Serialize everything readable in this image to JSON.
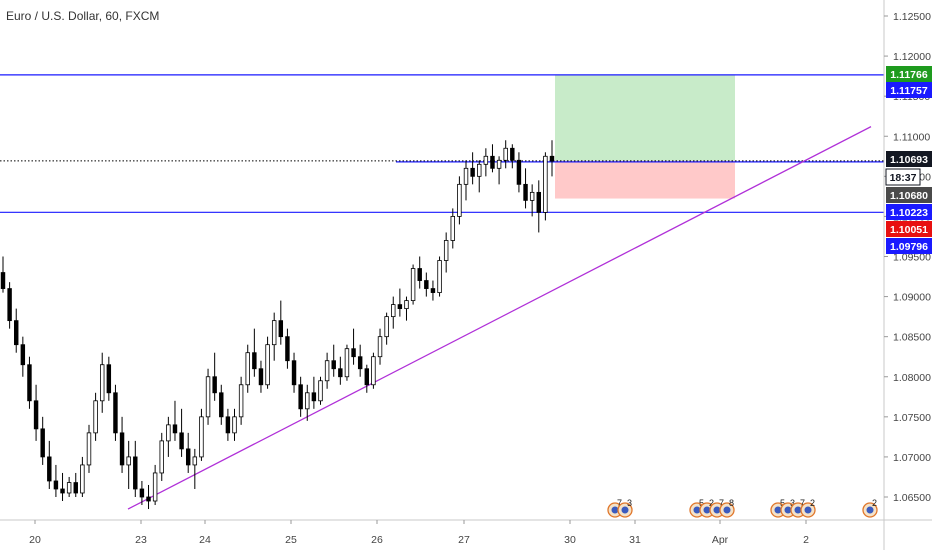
{
  "header": {
    "title": "Euro / U.S. Dollar, 60, FXCM"
  },
  "colors": {
    "up": "#ffffff",
    "down": "#000000",
    "wick": "#000000",
    "hline": "#1a1aff",
    "trend": "#b030d8",
    "target_zone": "#c8ebc9",
    "stop_zone": "#ffc9c9",
    "tag_green": "#1e9b1e",
    "tag_blue": "#1a1aff",
    "tag_red": "#e81010",
    "tag_dark": "#131722",
    "tag_gray": "#4a4a4a"
  },
  "chart_data": {
    "type": "candlestick",
    "title": "Euro / U.S. Dollar, 60, FXCM",
    "ylim": [
      1.0625,
      1.1275
    ],
    "y_ticks": [
      "1.12500",
      "1.12000",
      "1.11500",
      "1.11000",
      "1.10500",
      "1.10000",
      "1.09500",
      "1.09000",
      "1.08500",
      "1.08000",
      "1.07500",
      "1.07000",
      "1.06500"
    ],
    "x_ticks": [
      "20",
      "23",
      "24",
      "25",
      "26",
      "27",
      "30",
      "31",
      "Apr",
      "2"
    ],
    "price_line": 1.10693,
    "horizontal_lines": [
      1.11766,
      1.10051
    ],
    "short_line": {
      "value": 1.1068,
      "from": "26",
      "to": "2"
    },
    "trendline": {
      "from": [
        "23",
        1.0635
      ],
      "to": [
        "2",
        1.1112
      ]
    },
    "position": {
      "entry": 1.10693,
      "target": 1.11766,
      "stop": 1.10223
    },
    "price_tags": [
      {
        "text": "1.11766",
        "value": 1.11766,
        "style": "green"
      },
      {
        "text": "1.11757",
        "value": 1.11757,
        "style": "blue"
      },
      {
        "text": "1.10693",
        "value": 1.10693,
        "style": "dark"
      },
      {
        "text": "18:37",
        "value": 1.10693,
        "style": "timer"
      },
      {
        "text": "1.10680",
        "value": 1.1068,
        "style": "gray"
      },
      {
        "text": "1.10223",
        "value": 1.10223,
        "style": "blue"
      },
      {
        "text": "1.10051",
        "value": 1.10051,
        "style": "red"
      },
      {
        "text": "1.09796",
        "value": 1.09796,
        "style": "blue"
      }
    ],
    "event_markers": [
      {
        "labels": [
          "7",
          "3"
        ]
      },
      {
        "labels": [
          "5",
          "2",
          "7",
          "8"
        ]
      },
      {
        "labels": [
          "5",
          "3",
          "7",
          "2"
        ]
      },
      {
        "labels": [
          "2"
        ]
      }
    ],
    "candles": [
      [
        1.093,
        1.095,
        1.0905,
        1.091
      ],
      [
        1.091,
        1.0918,
        1.086,
        1.087
      ],
      [
        1.087,
        1.0885,
        1.083,
        1.084
      ],
      [
        1.084,
        1.085,
        1.08,
        1.0815
      ],
      [
        1.0815,
        1.0825,
        1.076,
        1.077
      ],
      [
        1.077,
        1.079,
        1.072,
        1.0735
      ],
      [
        1.0735,
        1.075,
        1.069,
        1.07
      ],
      [
        1.07,
        1.072,
        1.066,
        1.067
      ],
      [
        1.067,
        1.069,
        1.065,
        1.066
      ],
      [
        1.066,
        1.068,
        1.0645,
        1.0655
      ],
      [
        1.0655,
        1.0675,
        1.065,
        1.0668
      ],
      [
        1.0668,
        1.068,
        1.065,
        1.0655
      ],
      [
        1.0655,
        1.07,
        1.065,
        1.069
      ],
      [
        1.069,
        1.074,
        1.068,
        1.073
      ],
      [
        1.073,
        1.078,
        1.072,
        1.077
      ],
      [
        1.077,
        1.083,
        1.0755,
        1.0815
      ],
      [
        1.0815,
        1.0825,
        1.077,
        1.078
      ],
      [
        1.078,
        1.079,
        1.072,
        1.073
      ],
      [
        1.073,
        1.075,
        1.068,
        1.069
      ],
      [
        1.069,
        1.072,
        1.066,
        1.07
      ],
      [
        1.07,
        1.072,
        1.065,
        1.066
      ],
      [
        1.066,
        1.067,
        1.064,
        1.065
      ],
      [
        1.065,
        1.0665,
        1.0635,
        1.0645
      ],
      [
        1.0645,
        1.069,
        1.064,
        1.068
      ],
      [
        1.068,
        1.073,
        1.067,
        1.072
      ],
      [
        1.072,
        1.075,
        1.07,
        1.074
      ],
      [
        1.074,
        1.077,
        1.072,
        1.073
      ],
      [
        1.073,
        1.076,
        1.07,
        1.071
      ],
      [
        1.071,
        1.073,
        1.068,
        1.069
      ],
      [
        1.069,
        1.071,
        1.066,
        1.07
      ],
      [
        1.07,
        1.076,
        1.0695,
        1.075
      ],
      [
        1.075,
        1.081,
        1.074,
        1.08
      ],
      [
        1.08,
        1.083,
        1.077,
        1.078
      ],
      [
        1.078,
        1.079,
        1.074,
        1.075
      ],
      [
        1.075,
        1.076,
        1.072,
        1.073
      ],
      [
        1.073,
        1.076,
        1.072,
        1.075
      ],
      [
        1.075,
        1.08,
        1.074,
        1.079
      ],
      [
        1.079,
        1.084,
        1.078,
        1.083
      ],
      [
        1.083,
        1.086,
        1.08,
        1.081
      ],
      [
        1.081,
        1.082,
        1.078,
        1.079
      ],
      [
        1.079,
        1.085,
        1.0785,
        1.084
      ],
      [
        1.084,
        1.088,
        1.082,
        1.087
      ],
      [
        1.087,
        1.0895,
        1.084,
        1.085
      ],
      [
        1.085,
        1.086,
        1.081,
        1.082
      ],
      [
        1.082,
        1.083,
        1.078,
        1.079
      ],
      [
        1.079,
        1.08,
        1.075,
        1.076
      ],
      [
        1.076,
        1.079,
        1.0745,
        1.078
      ],
      [
        1.078,
        1.08,
        1.076,
        1.077
      ],
      [
        1.077,
        1.08,
        1.0765,
        1.0795
      ],
      [
        1.0795,
        1.083,
        1.0785,
        1.082
      ],
      [
        1.082,
        1.084,
        1.08,
        1.081
      ],
      [
        1.081,
        1.0825,
        1.079,
        1.08
      ],
      [
        1.08,
        1.084,
        1.0795,
        1.0835
      ],
      [
        1.0835,
        1.086,
        1.0815,
        1.0825
      ],
      [
        1.0825,
        1.084,
        1.08,
        1.081
      ],
      [
        1.081,
        1.0815,
        1.078,
        1.079
      ],
      [
        1.079,
        1.083,
        1.0785,
        1.0825
      ],
      [
        1.0825,
        1.086,
        1.0815,
        1.085
      ],
      [
        1.085,
        1.088,
        1.084,
        1.0875
      ],
      [
        1.0875,
        1.09,
        1.086,
        1.089
      ],
      [
        1.089,
        1.091,
        1.0875,
        1.0885
      ],
      [
        1.0885,
        1.09,
        1.087,
        1.0895
      ],
      [
        1.0895,
        1.094,
        1.089,
        1.0935
      ],
      [
        1.0935,
        1.095,
        1.091,
        1.092
      ],
      [
        1.092,
        1.093,
        1.09,
        1.091
      ],
      [
        1.091,
        1.092,
        1.0895,
        1.0905
      ],
      [
        1.0905,
        1.095,
        1.09,
        1.0945
      ],
      [
        1.0945,
        1.098,
        1.093,
        1.097
      ],
      [
        1.097,
        1.101,
        1.096,
        1.1
      ],
      [
        1.1,
        1.105,
        1.099,
        1.104
      ],
      [
        1.104,
        1.107,
        1.102,
        1.106
      ],
      [
        1.106,
        1.108,
        1.104,
        1.105
      ],
      [
        1.105,
        1.107,
        1.103,
        1.1065
      ],
      [
        1.1065,
        1.1085,
        1.105,
        1.1075
      ],
      [
        1.1075,
        1.109,
        1.1055,
        1.106
      ],
      [
        1.106,
        1.1075,
        1.104,
        1.107
      ],
      [
        1.107,
        1.1095,
        1.106,
        1.1085
      ],
      [
        1.1085,
        1.109,
        1.106,
        1.107
      ],
      [
        1.107,
        1.108,
        1.103,
        1.104
      ],
      [
        1.104,
        1.106,
        1.101,
        1.102
      ],
      [
        1.102,
        1.104,
        1.1,
        1.103
      ],
      [
        1.103,
        1.1045,
        1.098,
        1.1005
      ],
      [
        1.1005,
        1.108,
        1.0995,
        1.1075
      ],
      [
        1.1075,
        1.1095,
        1.105,
        1.1069
      ]
    ]
  }
}
